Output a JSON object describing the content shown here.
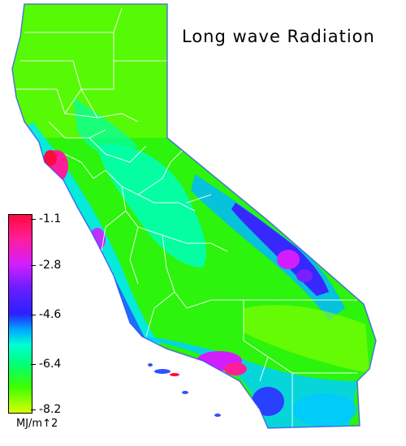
{
  "title": "Long wave Radiation",
  "legend": {
    "ticks": [
      "-1.1",
      "-2.8",
      "-4.6",
      "-6.4",
      "-8.2"
    ],
    "units": "MJ/m↑2"
  },
  "colors": {
    "high": "#ff0a3c",
    "magenta": "#d21eff",
    "blue": "#2a20ff",
    "cyan": "#00d8ff",
    "green": "#3cff00",
    "low": "#d8ff00"
  }
}
